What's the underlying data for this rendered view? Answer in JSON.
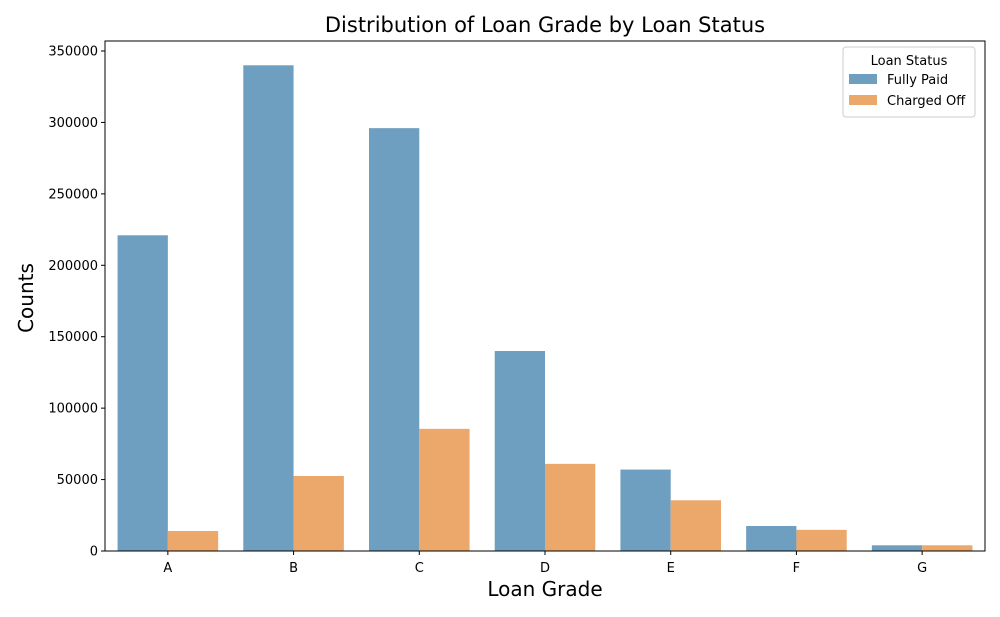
{
  "chart_data": {
    "type": "bar",
    "title": "Distribution of Loan Grade by Loan Status",
    "xlabel": "Loan Grade",
    "ylabel": "Counts",
    "categories": [
      "A",
      "B",
      "C",
      "D",
      "E",
      "F",
      "G"
    ],
    "series": [
      {
        "name": "Fully Paid",
        "color": "#6f9fc0",
        "values": [
          221000,
          340000,
          296000,
          140000,
          57000,
          17500,
          4000
        ]
      },
      {
        "name": "Charged Off",
        "color": "#eca76a",
        "values": [
          14000,
          52500,
          85500,
          61000,
          35500,
          14800,
          4000
        ]
      }
    ],
    "ylim": [
      0,
      357000
    ],
    "yticks": [
      0,
      50000,
      100000,
      150000,
      200000,
      250000,
      300000,
      350000
    ],
    "legend": {
      "title": "Loan Status",
      "position": "top-right"
    },
    "grid": false
  }
}
